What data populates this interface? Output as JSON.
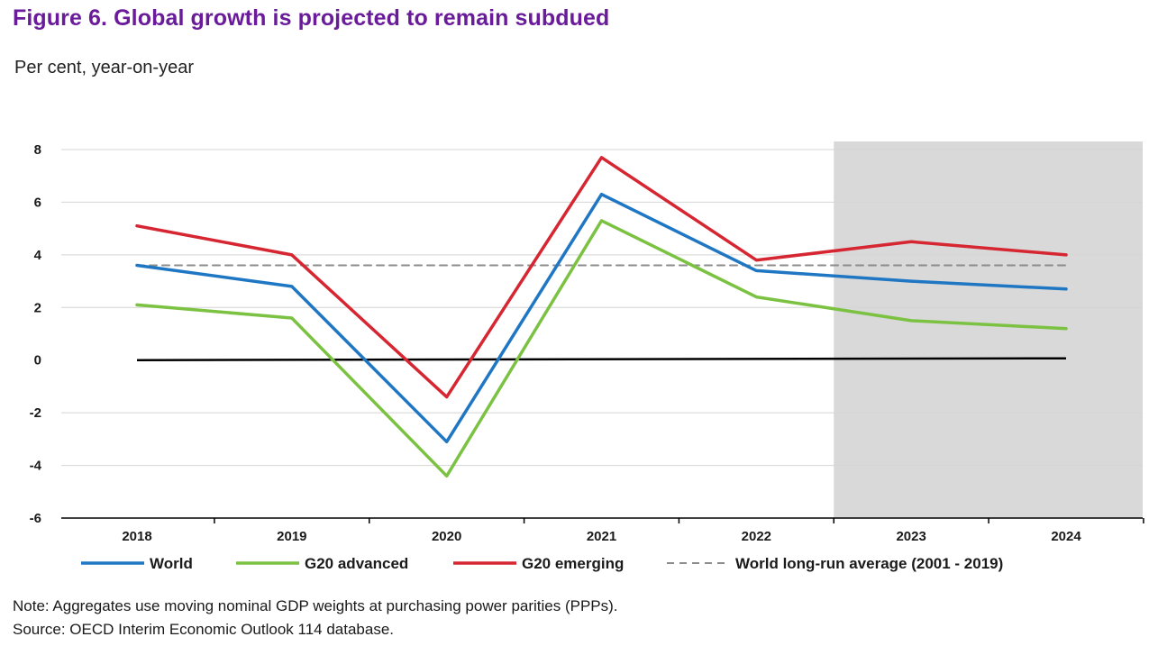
{
  "title": "Figure 6. Global growth is projected to remain subdued",
  "subtitle": "Per cent, year-on-year",
  "note": "Note: Aggregates use moving nominal GDP weights at purchasing power parities (PPPs).",
  "source": "Source: OECD Interim Economic Outlook 114 database.",
  "colors": {
    "world": "#1f77c4",
    "g20_advanced": "#7cc242",
    "g20_emerging": "#d62631",
    "longrun": "#8c8c8c",
    "projection_shade": "#d9d9d9",
    "title": "#6a1b9a"
  },
  "chart_data": {
    "type": "line",
    "categories": [
      "2018",
      "2019",
      "2020",
      "2021",
      "2022",
      "2023",
      "2024"
    ],
    "ylim": [
      -6,
      8
    ],
    "yticks": [
      8,
      6,
      4,
      2,
      0,
      -2,
      -4,
      -6
    ],
    "grid": true,
    "projection_shaded_from": "2023",
    "legend_position": "bottom",
    "series": [
      {
        "name": "World",
        "key": "world",
        "values": [
          3.6,
          2.8,
          -3.1,
          6.3,
          3.4,
          3.0,
          2.7
        ],
        "style": "solid"
      },
      {
        "name": "G20 advanced",
        "key": "g20_advanced",
        "values": [
          2.1,
          1.6,
          -4.4,
          5.3,
          2.4,
          1.5,
          1.2
        ],
        "style": "solid"
      },
      {
        "name": "G20 emerging",
        "key": "g20_emerging",
        "values": [
          5.1,
          4.0,
          -1.4,
          7.7,
          3.8,
          4.5,
          4.0
        ],
        "style": "solid"
      },
      {
        "name": "World long-run average (2001 - 2019)",
        "key": "longrun",
        "values": [
          3.6,
          3.6,
          3.6,
          3.6,
          3.6,
          3.6,
          3.6
        ],
        "style": "dashed"
      }
    ]
  }
}
